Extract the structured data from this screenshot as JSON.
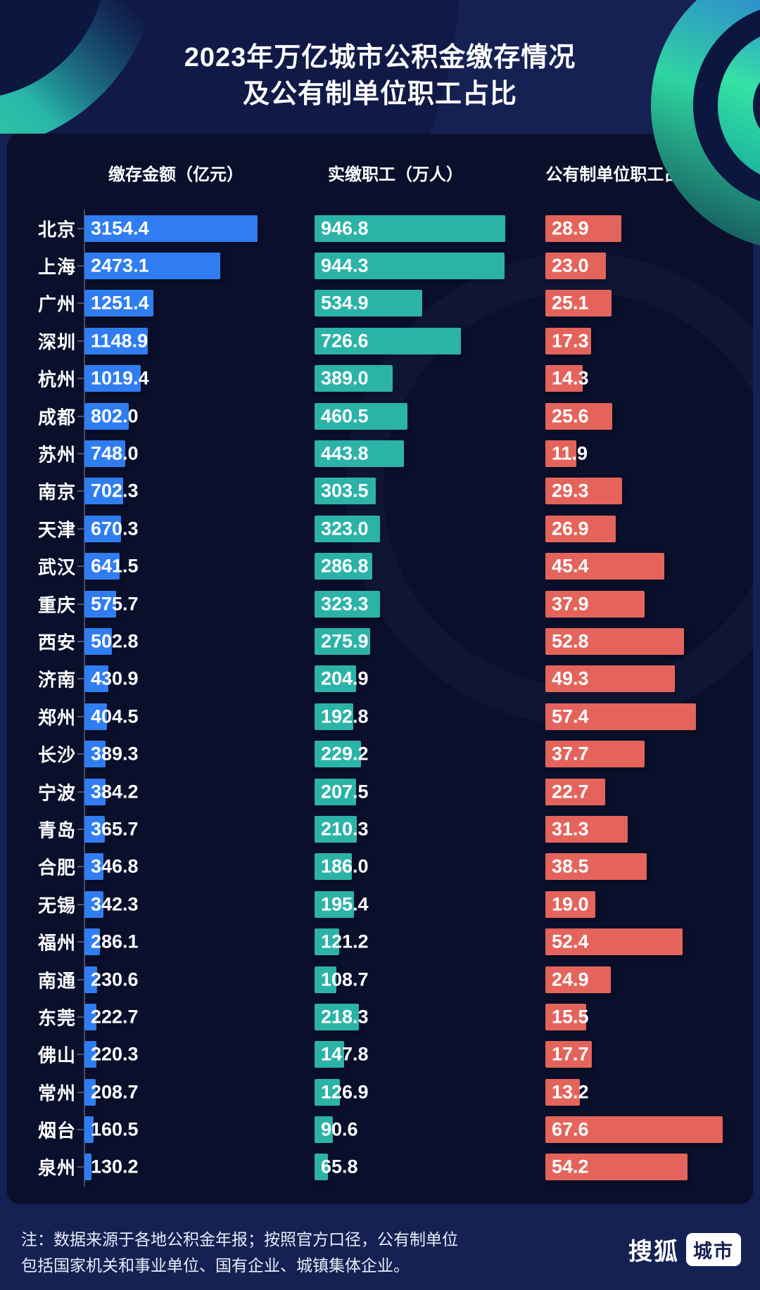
{
  "title": {
    "line1": "2023年万亿城市公积金缴存情况",
    "line2": "及公有制单位职工占比"
  },
  "note": "注：数据来源于各地公积金年报；按照官方口径，公有制单位包括国家机关和事业单位、国有企业、城镇集体企业。",
  "logo": {
    "brand": "搜狐",
    "badge": "城市"
  },
  "colors": {
    "background": "#162153",
    "panel": "#0b1030",
    "deposit_bar": "#2F7DF1",
    "employees_bar": "#2BB3A8",
    "share_bar": "#E4645C",
    "accent_green": "#38E4A0",
    "accent_blue": "#2F70E2"
  },
  "chart_data": {
    "type": "bar",
    "orientation": "horizontal",
    "title": "2023年万亿城市公积金缴存情况及公有制单位职工占比",
    "value_labels": "inside-start, 1 decimal",
    "grid": false,
    "categories": [
      "北京",
      "上海",
      "广州",
      "深圳",
      "杭州",
      "成都",
      "苏州",
      "南京",
      "天津",
      "武汉",
      "重庆",
      "西安",
      "济南",
      "郑州",
      "长沙",
      "宁波",
      "青岛",
      "合肥",
      "无锡",
      "福州",
      "南通",
      "东莞",
      "佛山",
      "常州",
      "烟台",
      "泉州"
    ],
    "series": [
      {
        "name": "缴存金额（亿元）",
        "color": "#2F7DF1",
        "axis_max": 3154.4,
        "values": [
          3154.4,
          2473.1,
          1251.4,
          1148.9,
          1019.4,
          802.0,
          748.0,
          702.3,
          670.3,
          641.5,
          575.7,
          502.8,
          430.9,
          404.5,
          389.3,
          384.2,
          365.7,
          346.8,
          342.3,
          286.1,
          230.6,
          222.7,
          220.3,
          208.7,
          160.5,
          130.2
        ]
      },
      {
        "name": "实缴职工（万人）",
        "color": "#2BB3A8",
        "axis_max": 946.8,
        "values": [
          946.8,
          944.3,
          534.9,
          726.6,
          389.0,
          460.5,
          443.8,
          303.5,
          323.0,
          286.8,
          323.3,
          275.9,
          204.9,
          192.8,
          229.2,
          207.5,
          210.3,
          186.0,
          195.4,
          121.2,
          108.7,
          218.3,
          147.8,
          126.9,
          90.6,
          65.8
        ]
      },
      {
        "name": "公有制单位职工占比（%）",
        "color": "#E4645C",
        "axis_max": 67.6,
        "values": [
          28.9,
          23.0,
          25.1,
          17.3,
          14.3,
          25.6,
          11.9,
          29.3,
          26.9,
          45.4,
          37.9,
          52.8,
          49.3,
          57.4,
          37.7,
          22.7,
          31.3,
          38.5,
          19.0,
          52.4,
          24.9,
          15.5,
          17.7,
          13.2,
          67.6,
          54.2
        ]
      }
    ]
  }
}
